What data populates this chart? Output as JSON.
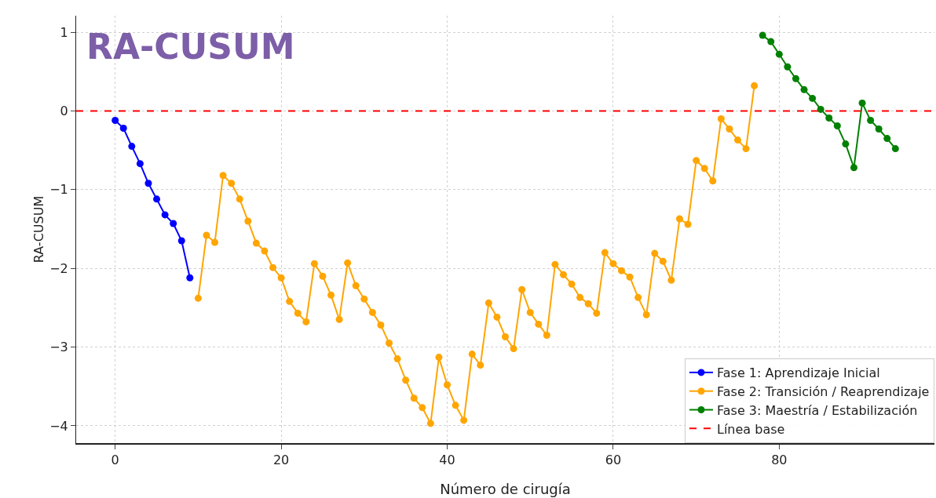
{
  "chart_data": {
    "type": "line",
    "title": "RA-CUSUM",
    "xlabel": "Número de cirugía",
    "ylabel": "RA-CUSUM",
    "series": [
      {
        "name": "Fase 1: Aprendizaje Inicial",
        "color": "#0000ff",
        "x": [
          0,
          1,
          2,
          3,
          4,
          5,
          6,
          7,
          8,
          9
        ],
        "values": [
          -0.12,
          -0.22,
          -0.45,
          -0.67,
          -0.92,
          -1.12,
          -1.32,
          -1.43,
          -1.65,
          -2.12
        ]
      },
      {
        "name": "Fase 2: Transición / Reaprendizaje",
        "color": "#ffa500",
        "x": [
          10,
          11,
          12,
          13,
          14,
          15,
          16,
          17,
          18,
          19,
          20,
          21,
          22,
          23,
          24,
          25,
          26,
          27,
          28,
          29,
          30,
          31,
          32,
          33,
          34,
          35,
          36,
          37,
          38,
          39,
          40,
          41,
          42,
          43,
          44,
          45,
          46,
          47,
          48,
          49,
          50,
          51,
          52,
          53,
          54,
          55,
          56,
          57,
          58,
          59,
          60,
          61,
          62,
          63,
          64,
          65,
          66,
          67,
          68,
          69,
          70,
          71,
          72,
          73,
          74,
          75,
          76,
          77
        ],
        "values": [
          -2.38,
          -1.58,
          -1.67,
          -0.82,
          -0.92,
          -1.12,
          -1.4,
          -1.68,
          -1.78,
          -1.99,
          -2.12,
          -2.42,
          -2.57,
          -2.68,
          -1.94,
          -2.1,
          -2.34,
          -2.65,
          -1.93,
          -2.22,
          -2.39,
          -2.56,
          -2.72,
          -2.95,
          -3.15,
          -3.42,
          -3.65,
          -3.77,
          -3.97,
          -3.13,
          -3.48,
          -3.74,
          -3.93,
          -3.09,
          -3.23,
          -2.44,
          -2.62,
          -2.87,
          -3.02,
          -2.27,
          -2.56,
          -2.71,
          -2.85,
          -1.95,
          -2.08,
          -2.2,
          -2.37,
          -2.45,
          -2.57,
          -1.8,
          -1.94,
          -2.03,
          -2.11,
          -2.37,
          -2.59,
          -1.81,
          -1.91,
          -2.15,
          -1.37,
          -1.44,
          -0.63,
          -0.73,
          -0.89,
          -0.1,
          -0.23,
          -0.37,
          -0.48,
          0.32
        ]
      },
      {
        "name": "Fase 3: Maestría / Estabilización",
        "color": "#008000",
        "x": [
          78,
          79,
          80,
          81,
          82,
          83,
          84,
          85,
          86,
          87,
          88,
          89,
          90,
          91,
          92,
          93,
          94
        ],
        "values": [
          0.96,
          0.88,
          0.72,
          0.56,
          0.41,
          0.27,
          0.16,
          0.02,
          -0.09,
          -0.19,
          -0.42,
          -0.72,
          0.1,
          -0.12,
          -0.23,
          -0.35,
          -0.48
        ]
      }
    ],
    "ref_lines": [
      {
        "axis": "y",
        "value": 0,
        "label": "Línea base",
        "color": "#ff0000",
        "line_style": "dashed"
      }
    ],
    "xlim": [
      -4.7,
      98.7
    ],
    "xticks": [
      0,
      20,
      40,
      60,
      80
    ],
    "ylim": [
      -4.22,
      1.21
    ],
    "yticks": [
      {
        "value": -4,
        "label": "−4"
      },
      {
        "value": -3,
        "label": "−3"
      },
      {
        "value": -2,
        "label": "−2"
      },
      {
        "value": -1,
        "label": "−1"
      },
      0,
      1
    ],
    "grid": true,
    "legend": "bottom right",
    "marker": "circle",
    "line_style": "solid"
  }
}
